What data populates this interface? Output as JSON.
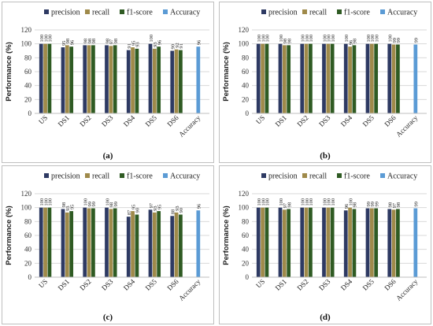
{
  "colors": {
    "precision": "#2e3a63",
    "recall": "#9f8a4a",
    "f1-score": "#2f5b23",
    "Accuracy": "#5b9bd5",
    "grid": "#d9d9d9",
    "frame": "#bfbfbf"
  },
  "chart_data": [
    {
      "type": "bar",
      "panel_label": "(a)",
      "ylabel": "Performance (%)",
      "ylim": [
        0,
        120
      ],
      "yticks": [
        0,
        20,
        40,
        60,
        80,
        100,
        120
      ],
      "categories": [
        "US",
        "DS1",
        "DS2",
        "DS3",
        "DS4",
        "DS5",
        "DS6",
        "Accuracy"
      ],
      "legend": [
        "precision",
        "recall",
        "f1-score",
        "Accuracy"
      ],
      "legend_position": "top",
      "grid": true,
      "series": [
        {
          "name": "precision",
          "values": [
            100,
            95,
            98,
            98,
            91,
            100,
            90,
            null
          ],
          "labels": [
            "100",
            "95",
            "98",
            "98",
            "91",
            "100",
            "90",
            ""
          ]
        },
        {
          "name": "recall",
          "values": [
            100,
            98,
            98,
            97,
            95,
            93,
            92,
            null
          ],
          "labels": [
            "100",
            "98",
            "98",
            "97",
            "95",
            "93",
            "92",
            ""
          ]
        },
        {
          "name": "f1-score",
          "values": [
            100,
            96,
            98,
            98,
            93,
            96,
            91,
            null
          ],
          "labels": [
            "100",
            "96",
            "98",
            "98",
            "93",
            "96",
            "91",
            ""
          ]
        },
        {
          "name": "Accuracy",
          "values": [
            null,
            null,
            null,
            null,
            null,
            null,
            null,
            96
          ],
          "labels": [
            "",
            "",
            "",
            "",
            "",
            "",
            "",
            "96"
          ]
        }
      ]
    },
    {
      "type": "bar",
      "panel_label": "(b)",
      "ylabel": "Performance (%)",
      "ylim": [
        0,
        120
      ],
      "yticks": [
        0,
        20,
        40,
        60,
        80,
        100,
        120
      ],
      "categories": [
        "US",
        "DS1",
        "DS2",
        "DS3",
        "DS4",
        "DS5",
        "DS6",
        "Accuracy"
      ],
      "legend": [
        "precision",
        "recall",
        "f1-score",
        "Accuracy"
      ],
      "legend_position": "top",
      "grid": true,
      "series": [
        {
          "name": "precision",
          "values": [
            100,
            100,
            100,
            100,
            100,
            100,
            100,
            null
          ],
          "labels": [
            "100",
            "100",
            "100",
            "100",
            "100",
            "100",
            "100",
            ""
          ]
        },
        {
          "name": "recall",
          "values": [
            100,
            98,
            100,
            100,
            96,
            100,
            99,
            null
          ],
          "labels": [
            "100",
            "98",
            "100",
            "100",
            "96",
            "100",
            "99",
            ""
          ]
        },
        {
          "name": "f1-score",
          "values": [
            100,
            98,
            100,
            100,
            98,
            100,
            99,
            null
          ],
          "labels": [
            "100",
            "98",
            "100",
            "100",
            "98",
            "100",
            "99",
            ""
          ]
        },
        {
          "name": "Accuracy",
          "values": [
            null,
            null,
            null,
            null,
            null,
            null,
            null,
            99
          ],
          "labels": [
            "",
            "",
            "",
            "",
            "",
            "",
            "",
            "99"
          ]
        }
      ]
    },
    {
      "type": "bar",
      "panel_label": "(c)",
      "ylabel": "Performance (%)",
      "ylim": [
        0,
        120
      ],
      "yticks": [
        0,
        20,
        40,
        60,
        80,
        100,
        120
      ],
      "categories": [
        "US",
        "DS1",
        "DS2",
        "DS3",
        "DS4",
        "DS5",
        "DS6",
        "Accuracy"
      ],
      "legend": [
        "precision",
        "recall",
        "f1-score",
        "Accuracy"
      ],
      "legend_position": "top",
      "grid": true,
      "series": [
        {
          "name": "precision",
          "values": [
            100,
            98,
            100,
            100,
            87,
            97,
            88,
            null
          ],
          "labels": [
            "100",
            "98",
            "100",
            "100",
            "87",
            "97",
            "88",
            ""
          ]
        },
        {
          "name": "recall",
          "values": [
            100,
            93,
            99,
            98,
            95,
            93,
            93,
            null
          ],
          "labels": [
            "100",
            "93",
            "99",
            "98",
            "95",
            "93",
            "93",
            ""
          ]
        },
        {
          "name": "f1-score",
          "values": [
            100,
            95,
            99,
            99,
            90,
            95,
            90,
            null
          ],
          "labels": [
            "100",
            "95",
            "99",
            "99",
            "90",
            "95",
            "90",
            ""
          ]
        },
        {
          "name": "Accuracy",
          "values": [
            null,
            null,
            null,
            null,
            null,
            null,
            null,
            96
          ],
          "labels": [
            "",
            "",
            "",
            "",
            "",
            "",
            "",
            "96"
          ]
        }
      ]
    },
    {
      "type": "bar",
      "panel_label": "(d)",
      "ylabel": "Performance (%)",
      "ylim": [
        0,
        120
      ],
      "yticks": [
        0,
        20,
        40,
        60,
        80,
        100,
        120
      ],
      "categories": [
        "US",
        "DS1",
        "DS2",
        "DS3",
        "DS4",
        "DS5",
        "DS6",
        "Accuracy"
      ],
      "legend": [
        "precision",
        "recall",
        "f1-score",
        "Accuracy"
      ],
      "legend_position": "top",
      "grid": true,
      "series": [
        {
          "name": "precision",
          "values": [
            100,
            100,
            100,
            100,
            96,
            99,
            98,
            null
          ],
          "labels": [
            "100",
            "100",
            "100",
            "100",
            "96",
            "99",
            "98",
            ""
          ]
        },
        {
          "name": "recall",
          "values": [
            100,
            97,
            100,
            100,
            100,
            99,
            97,
            null
          ],
          "labels": [
            "100",
            "97",
            "100",
            "100",
            "100",
            "99",
            "97",
            ""
          ]
        },
        {
          "name": "f1-score",
          "values": [
            100,
            98,
            100,
            100,
            98,
            99,
            98,
            null
          ],
          "labels": [
            "100",
            "98",
            "100",
            "100",
            "98",
            "99",
            "98",
            ""
          ]
        },
        {
          "name": "Accuracy",
          "values": [
            null,
            null,
            null,
            null,
            null,
            null,
            null,
            99
          ],
          "labels": [
            "",
            "",
            "",
            "",
            "",
            "",
            "",
            "99"
          ]
        }
      ]
    }
  ]
}
